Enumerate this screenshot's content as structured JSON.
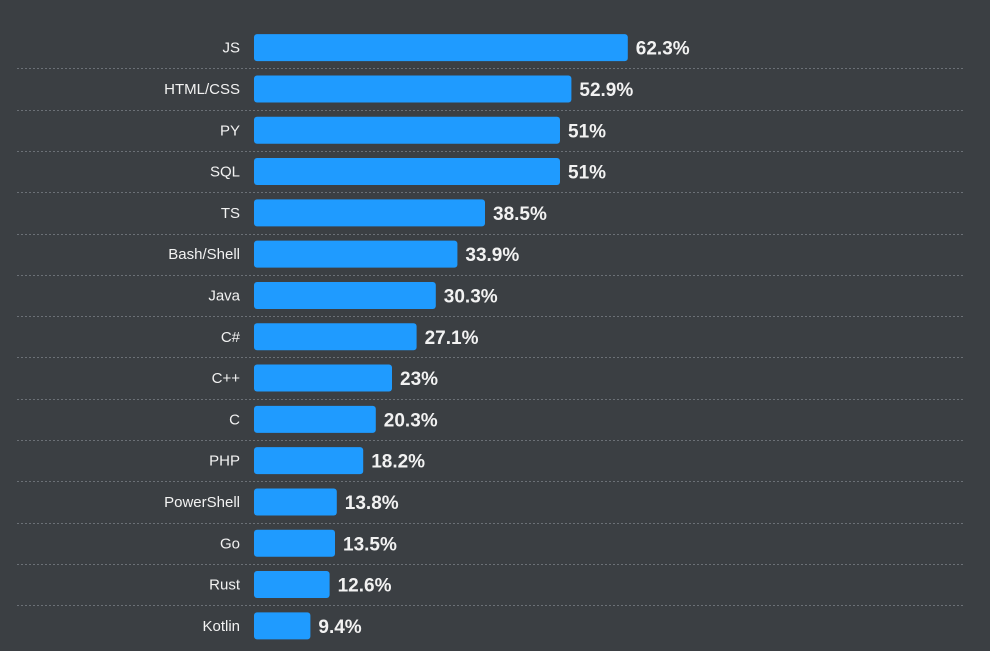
{
  "chart_data": {
    "type": "bar",
    "orientation": "horizontal",
    "categories": [
      "JS",
      "HTML/CSS",
      "PY",
      "SQL",
      "TS",
      "Bash/Shell",
      "Java",
      "C#",
      "C++",
      "C",
      "PHP",
      "PowerShell",
      "Go",
      "Rust",
      "Kotlin"
    ],
    "values": [
      62.3,
      52.9,
      51,
      51,
      38.5,
      33.9,
      30.3,
      27.1,
      23,
      20.3,
      18.2,
      13.8,
      13.5,
      12.6,
      9.4
    ],
    "value_labels": [
      "62.3%",
      "52.9%",
      "51%",
      "51%",
      "38.5%",
      "33.9%",
      "30.3%",
      "27.1%",
      "23%",
      "20.3%",
      "18.2%",
      "13.8%",
      "13.5%",
      "12.6%",
      "9.4%"
    ],
    "unit": "%",
    "grid": false,
    "colors": {
      "background": "#3b3f43",
      "bar": "#1f9bff",
      "text": "#f2f2f2",
      "divider": "#6b7076"
    }
  }
}
